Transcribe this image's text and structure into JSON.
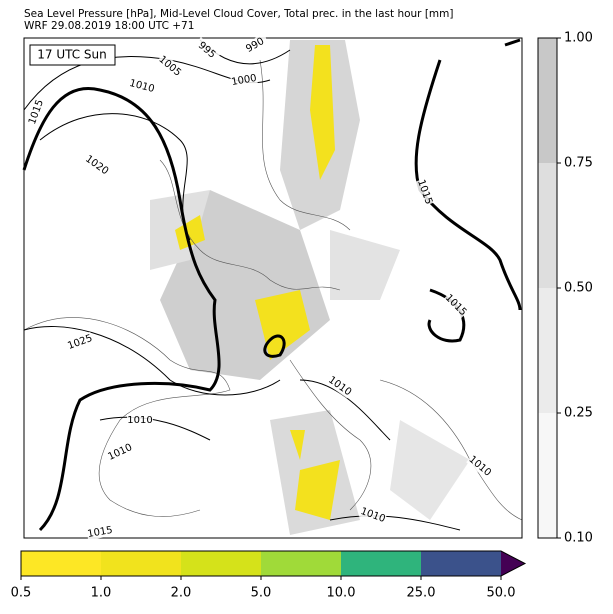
{
  "header": {
    "title": "Sea Level Pressure [hPa], Mid-Level Cloud Cover, Total prec. in the last hour [mm]",
    "subtitle": "WRF 29.08.2019 18:00 UTC +71"
  },
  "map": {
    "label": "17 UTC Sun",
    "contour_labels": [
      "995",
      "990",
      "1005",
      "1000",
      "1010",
      "1015",
      "1020",
      "1025",
      "1015",
      "1015",
      "1010",
      "1010",
      "1010",
      "1010",
      "1010",
      "1015"
    ]
  },
  "cloud_colorbar": {
    "ticks": [
      "0.10",
      "0.25",
      "0.50",
      "0.75",
      "1.00"
    ],
    "colors": [
      "#f7f7f7",
      "#ebebeb",
      "#dedede",
      "#c8c8c8"
    ]
  },
  "precip_colorbar": {
    "ticks": [
      "0.5",
      "1.0",
      "2.0",
      "5.0",
      "10.0",
      "25.0",
      "50.0"
    ],
    "colors": [
      "#fde725",
      "#f1e31d",
      "#d5e21a",
      "#a0da39",
      "#2fb47c",
      "#3b528b"
    ],
    "extend_color": "#440154"
  }
}
